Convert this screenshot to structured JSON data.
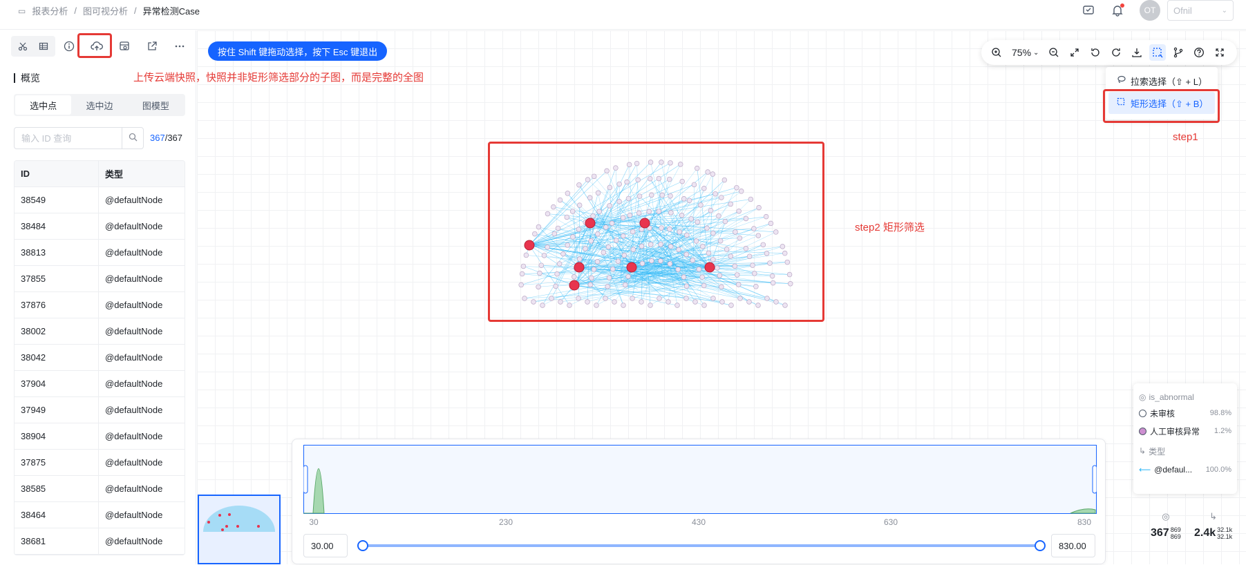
{
  "breadcrumb": {
    "root": "报表分析",
    "sep": "/",
    "mid": "图可视分析",
    "current": "异常检测Case"
  },
  "header": {
    "avatar": "OT",
    "user": "Ofnil"
  },
  "sidebar": {
    "section_title": "概览",
    "tabs": [
      {
        "label": "选中点"
      },
      {
        "label": "选中边"
      },
      {
        "label": "图模型"
      }
    ],
    "search_placeholder": "输入 ID 查询",
    "count_hit": "367",
    "count_total": "/367",
    "columns": [
      "ID",
      "类型"
    ],
    "rows": [
      {
        "id": "38549",
        "type": "@defaultNode"
      },
      {
        "id": "38484",
        "type": "@defaultNode"
      },
      {
        "id": "38813",
        "type": "@defaultNode"
      },
      {
        "id": "37855",
        "type": "@defaultNode"
      },
      {
        "id": "37876",
        "type": "@defaultNode"
      },
      {
        "id": "38002",
        "type": "@defaultNode"
      },
      {
        "id": "38042",
        "type": "@defaultNode"
      },
      {
        "id": "37904",
        "type": "@defaultNode"
      },
      {
        "id": "37949",
        "type": "@defaultNode"
      },
      {
        "id": "38904",
        "type": "@defaultNode"
      },
      {
        "id": "37875",
        "type": "@defaultNode"
      },
      {
        "id": "38585",
        "type": "@defaultNode"
      },
      {
        "id": "38464",
        "type": "@defaultNode"
      },
      {
        "id": "38681",
        "type": "@defaultNode"
      }
    ]
  },
  "canvas": {
    "hint": "按住 Shift 键拖动选择，按下 Esc 键退出",
    "annotation_upload": "上传云端快照，快照并非矩形筛选部分的子图，而是完整的全图",
    "annotation_step1": "step1",
    "annotation_step2": "step2 矩形筛选",
    "zoom": "75%",
    "menu": [
      {
        "label": "拉索选择（⇧ + L）"
      },
      {
        "label": "矩形选择（⇧ + B）"
      }
    ]
  },
  "legend": {
    "node_title": "is_abnormal",
    "items": [
      {
        "label": "未审核",
        "pct": "98.8%"
      },
      {
        "label": "人工审核异常",
        "pct": "1.2%"
      }
    ],
    "edge_title": "类型",
    "edge_item": {
      "label": "@defaul...",
      "pct": "100.0%"
    }
  },
  "timeline": {
    "ticks": [
      "30",
      "230",
      "430",
      "630",
      "830"
    ],
    "min_value": "30.00",
    "max_value": "830.00"
  },
  "stats": {
    "nodes_main": "367",
    "nodes_a": "869",
    "nodes_b": "869",
    "edges_main": "2.4k",
    "edges_a": "32.1k",
    "edges_b": "32.1k"
  },
  "colors": {
    "primary": "#1664ff",
    "annotation": "#e53935",
    "edge": "#29b6f6",
    "abnormal": "#e8344e",
    "node": "#ede4f2"
  }
}
